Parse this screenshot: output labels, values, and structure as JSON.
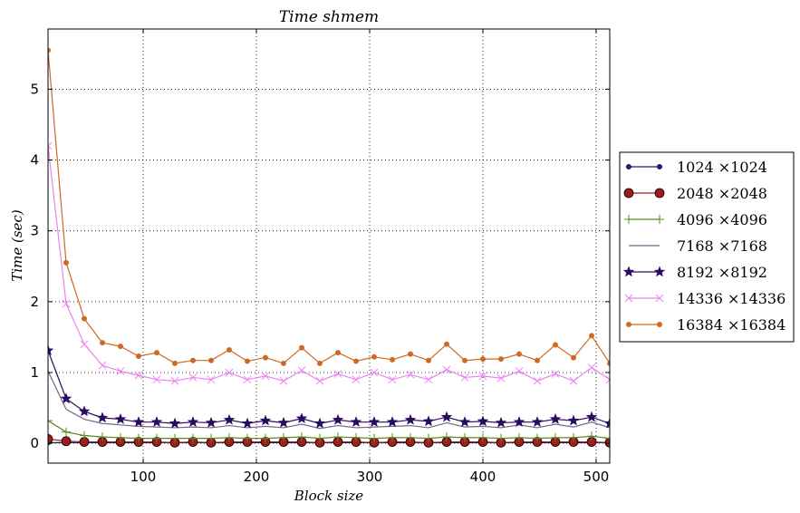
{
  "chart_data": {
    "type": "line",
    "title": "Time shmem",
    "xlabel": "Block size",
    "ylabel": "Time (sec)",
    "xlim": [
      16,
      512
    ],
    "ylim": [
      -0.28,
      5.85
    ],
    "xticks": [
      100,
      200,
      300,
      400,
      500
    ],
    "yticks": [
      0,
      1,
      2,
      3,
      4,
      5
    ],
    "grid": true,
    "legend_position": "right",
    "x": [
      16,
      32,
      48,
      64,
      80,
      96,
      112,
      128,
      144,
      160,
      176,
      192,
      208,
      224,
      240,
      256,
      272,
      288,
      304,
      320,
      336,
      352,
      368,
      384,
      400,
      416,
      432,
      448,
      464,
      480,
      496,
      512
    ],
    "series": [
      {
        "name": "1024 ×1024",
        "color": "#1f1f6e",
        "marker": "dot",
        "values": [
          0.01,
          0.01,
          0.01,
          0.01,
          0.01,
          0.01,
          0.01,
          0.01,
          0.01,
          0.01,
          0.01,
          0.01,
          0.01,
          0.01,
          0.01,
          0.01,
          0.01,
          0.01,
          0.01,
          0.01,
          0.01,
          0.01,
          0.01,
          0.01,
          0.01,
          0.01,
          0.01,
          0.01,
          0.01,
          0.01,
          0.01,
          0.01
        ]
      },
      {
        "name": "2048 ×2048",
        "color": "#a01c1c",
        "marker": "circle",
        "values": [
          0.06,
          0.03,
          0.02,
          0.02,
          0.02,
          0.02,
          0.02,
          0.01,
          0.02,
          0.01,
          0.02,
          0.02,
          0.02,
          0.02,
          0.02,
          0.01,
          0.02,
          0.02,
          0.01,
          0.02,
          0.02,
          0.01,
          0.02,
          0.02,
          0.02,
          0.01,
          0.02,
          0.02,
          0.02,
          0.02,
          0.02,
          0.01
        ]
      },
      {
        "name": "4096 ×4096",
        "color": "#5a8a1e",
        "marker": "plus",
        "values": [
          0.32,
          0.16,
          0.11,
          0.09,
          0.08,
          0.07,
          0.07,
          0.07,
          0.07,
          0.07,
          0.08,
          0.07,
          0.07,
          0.08,
          0.09,
          0.07,
          0.09,
          0.08,
          0.07,
          0.08,
          0.08,
          0.07,
          0.09,
          0.08,
          0.08,
          0.07,
          0.08,
          0.07,
          0.08,
          0.08,
          0.1,
          0.07
        ]
      },
      {
        "name": "7168 ×7168",
        "color": "#6a6a8a",
        "marker": "none",
        "values": [
          1.02,
          0.48,
          0.34,
          0.28,
          0.26,
          0.24,
          0.23,
          0.22,
          0.23,
          0.22,
          0.25,
          0.22,
          0.24,
          0.22,
          0.27,
          0.21,
          0.25,
          0.22,
          0.23,
          0.24,
          0.25,
          0.22,
          0.29,
          0.23,
          0.24,
          0.22,
          0.26,
          0.22,
          0.27,
          0.23,
          0.3,
          0.22
        ]
      },
      {
        "name": "8192 ×8192",
        "color": "#2a0a5e",
        "marker": "star",
        "values": [
          1.31,
          0.63,
          0.45,
          0.36,
          0.34,
          0.3,
          0.3,
          0.28,
          0.3,
          0.29,
          0.33,
          0.28,
          0.32,
          0.29,
          0.35,
          0.28,
          0.33,
          0.3,
          0.3,
          0.3,
          0.33,
          0.31,
          0.37,
          0.3,
          0.31,
          0.29,
          0.3,
          0.3,
          0.34,
          0.32,
          0.37,
          0.28
        ]
      },
      {
        "name": "14336 ×14336",
        "color": "#ee82ee",
        "marker": "x",
        "values": [
          4.2,
          1.97,
          1.4,
          1.1,
          1.02,
          0.96,
          0.9,
          0.88,
          0.93,
          0.9,
          1.0,
          0.9,
          0.95,
          0.88,
          1.03,
          0.88,
          0.98,
          0.9,
          1.0,
          0.9,
          0.97,
          0.9,
          1.04,
          0.93,
          0.95,
          0.92,
          1.02,
          0.88,
          0.98,
          0.88,
          1.07,
          0.9
        ]
      },
      {
        "name": "16384 ×16384",
        "color": "#cd6a24",
        "marker": "dot",
        "values": [
          5.55,
          2.55,
          1.76,
          1.42,
          1.37,
          1.23,
          1.28,
          1.13,
          1.17,
          1.17,
          1.32,
          1.16,
          1.21,
          1.13,
          1.35,
          1.13,
          1.28,
          1.16,
          1.22,
          1.18,
          1.26,
          1.17,
          1.4,
          1.17,
          1.19,
          1.19,
          1.26,
          1.17,
          1.39,
          1.21,
          1.52,
          1.13
        ]
      }
    ]
  }
}
